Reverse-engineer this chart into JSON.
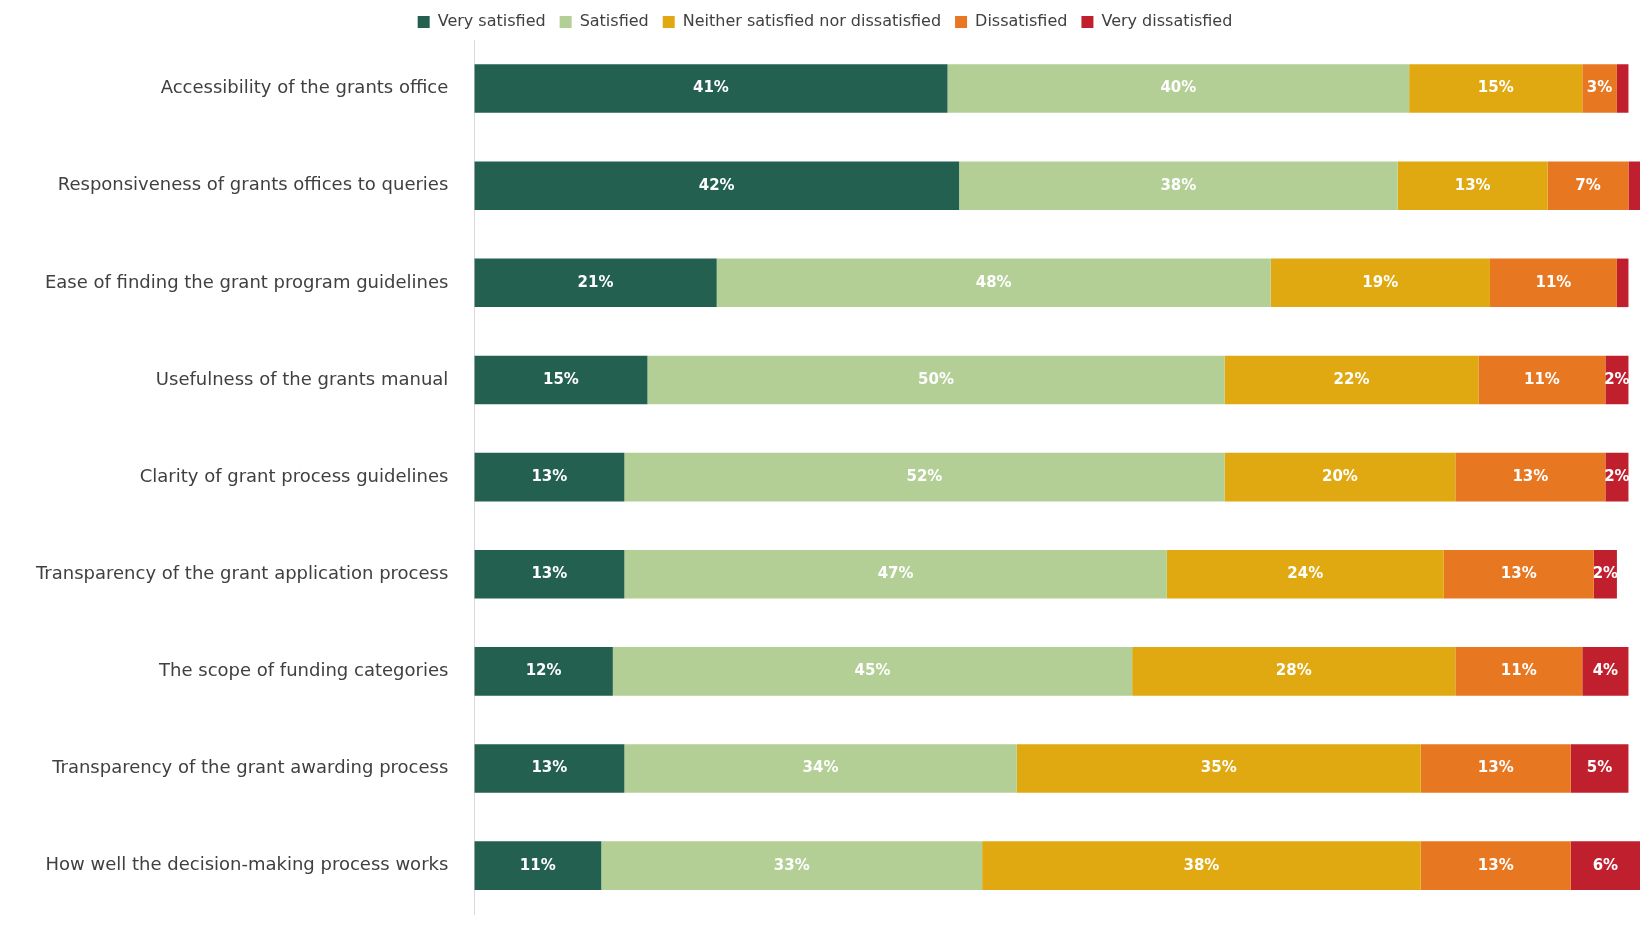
{
  "chart_data": {
    "type": "bar",
    "orientation": "horizontal",
    "stacked": true,
    "legend": "top",
    "tick_labels": "y",
    "grid": false,
    "xlim": [
      0,
      101
    ],
    "categories": [
      "Accessibility of the grants office",
      "Responsiveness of grants offices to queries",
      "Ease of finding the grant program guidelines",
      "Usefulness of the grants manual",
      "Clarity of grant process guidelines",
      "Transparency of the grant application process",
      "The scope of funding categories",
      "Transparency of the grant awarding process",
      "How well the decision-making process works"
    ],
    "series": [
      {
        "name": "Very satisfied",
        "color": "#23604f",
        "values": [
          41,
          42,
          21,
          15,
          13,
          13,
          12,
          13,
          11
        ],
        "value_labels": [
          "41%",
          "42%",
          "21%",
          "15%",
          "13%",
          "13%",
          "12%",
          "13%",
          "11%"
        ]
      },
      {
        "name": "Satisfied",
        "color": "#b3cf95",
        "values": [
          40,
          38,
          48,
          50,
          52,
          47,
          45,
          34,
          33
        ],
        "value_labels": [
          "40%",
          "38%",
          "48%",
          "50%",
          "52%",
          "47%",
          "45%",
          "34%",
          "33%"
        ]
      },
      {
        "name": "Neither satisfied nor dissatisfied",
        "color": "#e0a911",
        "values": [
          15,
          13,
          19,
          22,
          20,
          24,
          28,
          35,
          38
        ],
        "value_labels": [
          "15%",
          "13%",
          "19%",
          "22%",
          "20%",
          "24%",
          "28%",
          "35%",
          "38%"
        ]
      },
      {
        "name": "Dissatisfied",
        "color": "#e87722",
        "values": [
          3,
          7,
          11,
          11,
          13,
          13,
          11,
          13,
          13
        ],
        "value_labels": [
          "3%",
          "7%",
          "11%",
          "11%",
          "13%",
          "13%",
          "11%",
          "13%",
          "13%"
        ]
      },
      {
        "name": "Very dissatisfied",
        "color": "#c0202e",
        "values": [
          1,
          1,
          1,
          2,
          2,
          2,
          4,
          5,
          6
        ],
        "value_labels": [
          null,
          null,
          null,
          "2%",
          "2%",
          "2%",
          "4%",
          "5%",
          "6%"
        ]
      }
    ]
  }
}
